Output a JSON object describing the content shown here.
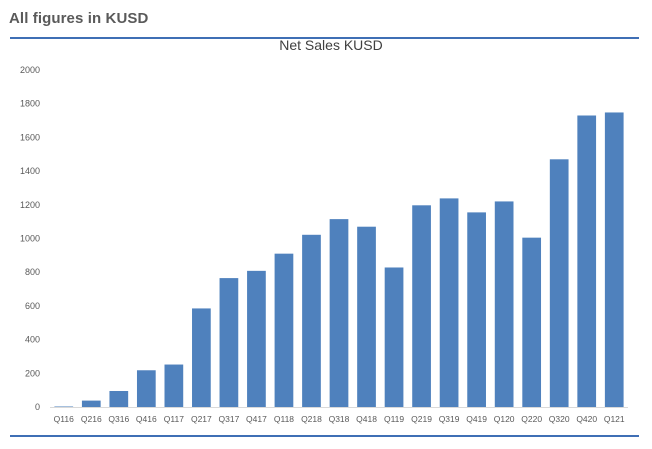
{
  "header": {
    "title": "All figures in KUSD"
  },
  "colors": {
    "bar": "#4f81bd",
    "rule": "#3f6fb5",
    "axis": "#d9d9d9"
  },
  "chart_data": {
    "type": "bar",
    "title": "Net Sales KUSD",
    "xlabel": "",
    "ylabel": "",
    "ylim": [
      0,
      2000
    ],
    "yticks": [
      0,
      200,
      400,
      600,
      800,
      1000,
      1200,
      1400,
      1600,
      1800,
      2000
    ],
    "grid": false,
    "categories": [
      "Q116",
      "Q216",
      "Q316",
      "Q416",
      "Q117",
      "Q217",
      "Q317",
      "Q417",
      "Q118",
      "Q218",
      "Q318",
      "Q418",
      "Q119",
      "Q219",
      "Q319",
      "Q419",
      "Q120",
      "Q220",
      "Q320",
      "Q420",
      "Q121"
    ],
    "series": [
      {
        "name": "Net Sales KUSD",
        "values": [
          3,
          38,
          95,
          218,
          252,
          585,
          765,
          808,
          910,
          1022,
          1115,
          1070,
          828,
          1197,
          1238,
          1155,
          1220,
          1005,
          1470,
          1730,
          1748
        ]
      }
    ]
  }
}
